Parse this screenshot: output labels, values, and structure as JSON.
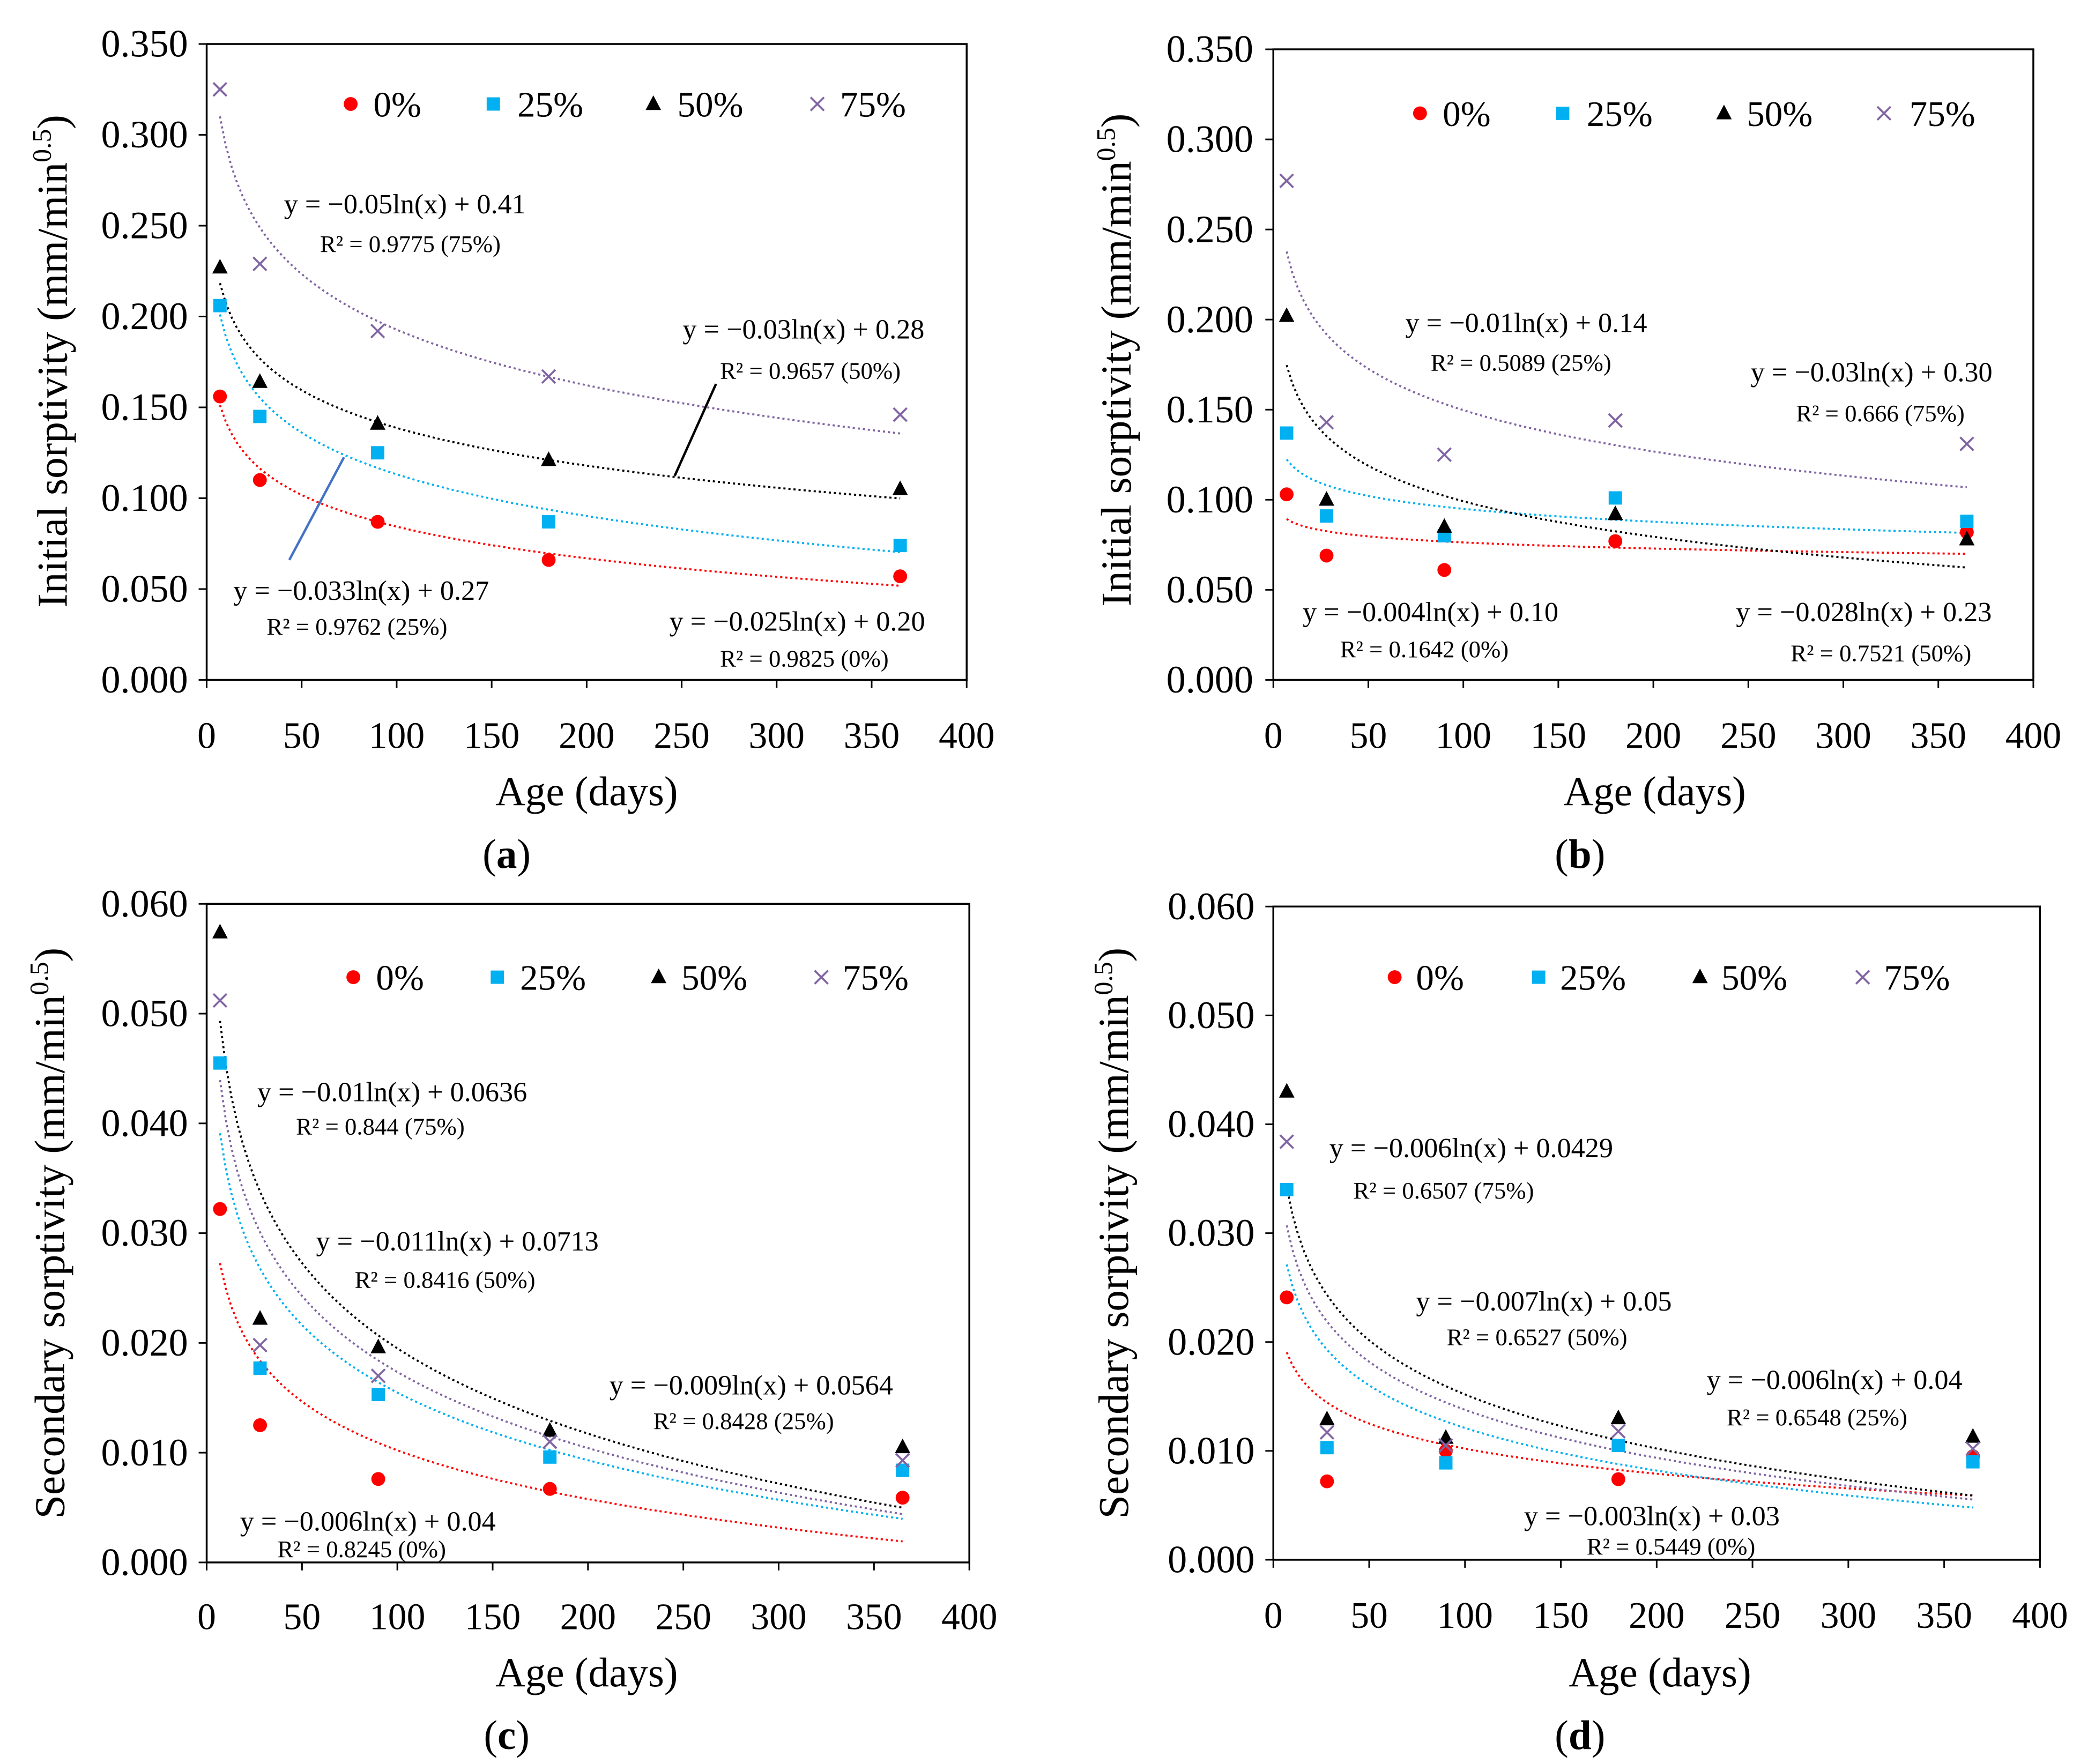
{
  "chart_data": [
    {
      "type": "scatter",
      "panel": {
        "open": "(",
        "letter": "a",
        "close": ")"
      },
      "xlabel": "Age (days)",
      "ylabel": {
        "text": "Initial sorptivity (mm/min",
        "sup": "0.5",
        "close": ")"
      },
      "xlim": [
        0,
        400
      ],
      "ylim": [
        0,
        0.35
      ],
      "xticks": [
        0,
        50,
        100,
        150,
        200,
        250,
        300,
        350,
        400
      ],
      "xtick_labels": [
        "0",
        "50",
        "100",
        "150",
        "200",
        "250",
        "300",
        "350",
        "400"
      ],
      "yticks": [
        0,
        0.05,
        0.1,
        0.15,
        0.2,
        0.25,
        0.3,
        0.35
      ],
      "ytick_labels": [
        "0.000",
        "0.050",
        "0.100",
        "0.150",
        "0.200",
        "0.250",
        "0.300",
        "0.350"
      ],
      "legend": "top",
      "series": [
        {
          "name": "0%",
          "color": "#ff0000",
          "marker": "circle",
          "x": [
            7,
            28,
            90,
            180,
            365
          ],
          "y": [
            0.156,
            0.11,
            0.087,
            0.066,
            0.057
          ]
        },
        {
          "name": "25%",
          "color": "#00b0f0",
          "marker": "square",
          "x": [
            7,
            28,
            90,
            180,
            365
          ],
          "y": [
            0.206,
            0.145,
            0.125,
            0.087,
            0.074
          ]
        },
        {
          "name": "50%",
          "color": "#000000",
          "marker": "triangle",
          "x": [
            7,
            28,
            90,
            180,
            365
          ],
          "y": [
            0.227,
            0.164,
            0.141,
            0.121,
            0.105
          ]
        },
        {
          "name": "75%",
          "color": "#8064a2",
          "marker": "x",
          "x": [
            7,
            28,
            90,
            180,
            365
          ],
          "y": [
            0.325,
            0.229,
            0.192,
            0.167,
            0.146
          ]
        }
      ],
      "annotations": [
        {
          "equation": "y = −0.05ln(x) + 0.41",
          "r2": "R² = 0.9775 (75%)"
        },
        {
          "equation": "y = −0.03ln(x) + 0.28",
          "r2": "R² = 0.9657 (50%)"
        },
        {
          "equation": "y = −0.033ln(x) + 0.27",
          "r2": "R² = 0.9762 (25%)"
        },
        {
          "equation": "y = −0.025ln(x) + 0.20",
          "r2": "R² = 0.9825 (0%)"
        }
      ]
    },
    {
      "type": "scatter",
      "panel": {
        "open": "(",
        "letter": "b",
        "close": ")"
      },
      "xlabel": "Age (days)",
      "ylabel": {
        "text": "Initial sorptivity (mm/min",
        "sup": "0.5",
        "close": ")"
      },
      "xlim": [
        0,
        400
      ],
      "ylim": [
        0,
        0.35
      ],
      "xticks": [
        0,
        50,
        100,
        150,
        200,
        250,
        300,
        350,
        400
      ],
      "xtick_labels": [
        "0",
        "50",
        "100",
        "150",
        "200",
        "250",
        "300",
        "350",
        "400"
      ],
      "yticks": [
        0,
        0.05,
        0.1,
        0.15,
        0.2,
        0.25,
        0.3,
        0.35
      ],
      "ytick_labels": [
        "0.000",
        "0.050",
        "0.100",
        "0.150",
        "0.200",
        "0.250",
        "0.300",
        "0.350"
      ],
      "legend": "top",
      "series": [
        {
          "name": "0%",
          "color": "#ff0000",
          "marker": "circle",
          "x": [
            7,
            28,
            90,
            180,
            365
          ],
          "y": [
            0.103,
            0.069,
            0.061,
            0.077,
            0.082
          ]
        },
        {
          "name": "25%",
          "color": "#00b0f0",
          "marker": "square",
          "x": [
            7,
            28,
            90,
            180,
            365
          ],
          "y": [
            0.137,
            0.091,
            0.08,
            0.101,
            0.088
          ]
        },
        {
          "name": "50%",
          "color": "#000000",
          "marker": "triangle",
          "x": [
            7,
            28,
            90,
            180,
            365
          ],
          "y": [
            0.202,
            0.1,
            0.085,
            0.092,
            0.078
          ]
        },
        {
          "name": "75%",
          "color": "#8064a2",
          "marker": "x",
          "x": [
            7,
            28,
            90,
            180,
            365
          ],
          "y": [
            0.277,
            0.143,
            0.125,
            0.144,
            0.131
          ]
        }
      ],
      "annotations": [
        {
          "equation": "y = −0.01ln(x) + 0.14",
          "r2": "R² = 0.5089 (25%)"
        },
        {
          "equation": "y = −0.03ln(x) + 0.30",
          "r2": "R² = 0.666 (75%)"
        },
        {
          "equation": "y = −0.004ln(x) + 0.10",
          "r2": "R² = 0.1642 (0%)"
        },
        {
          "equation": "y = −0.028ln(x) + 0.23",
          "r2": "R² = 0.7521 (50%)"
        }
      ]
    },
    {
      "type": "scatter",
      "panel": {
        "open": "(",
        "letter": "c",
        "close": ")"
      },
      "xlabel": "Age (days)",
      "ylabel": {
        "text": "Secondary sorptivity (mm/min",
        "sup": "0.5",
        "close": ")"
      },
      "xlim": [
        0,
        400
      ],
      "ylim": [
        0,
        0.06
      ],
      "xticks": [
        0,
        50,
        100,
        150,
        200,
        250,
        300,
        350,
        400
      ],
      "xtick_labels": [
        "0",
        "50",
        "100",
        "150",
        "200",
        "250",
        "300",
        "350",
        "400"
      ],
      "yticks": [
        0,
        0.01,
        0.02,
        0.03,
        0.04,
        0.05,
        0.06
      ],
      "ytick_labels": [
        "0.000",
        "0.010",
        "0.020",
        "0.030",
        "0.040",
        "0.050",
        "0.060"
      ],
      "legend": "top",
      "series": [
        {
          "name": "0%",
          "color": "#ff0000",
          "marker": "circle",
          "x": [
            7,
            28,
            90,
            180,
            365
          ],
          "y": [
            0.0322,
            0.0125,
            0.0076,
            0.0067,
            0.0059
          ]
        },
        {
          "name": "25%",
          "color": "#00b0f0",
          "marker": "square",
          "x": [
            7,
            28,
            90,
            180,
            365
          ],
          "y": [
            0.0455,
            0.0177,
            0.0153,
            0.0096,
            0.0084
          ]
        },
        {
          "name": "50%",
          "color": "#000000",
          "marker": "triangle",
          "x": [
            7,
            28,
            90,
            180,
            365
          ],
          "y": [
            0.0574,
            0.0222,
            0.0196,
            0.012,
            0.0105
          ]
        },
        {
          "name": "75%",
          "color": "#8064a2",
          "marker": "x",
          "x": [
            7,
            28,
            90,
            180,
            365
          ],
          "y": [
            0.0512,
            0.0198,
            0.017,
            0.011,
            0.0093
          ]
        }
      ],
      "annotations": [
        {
          "equation": "y = −0.01ln(x) + 0.0636",
          "r2": "R² = 0.844 (75%)"
        },
        {
          "equation": "y = −0.011ln(x) + 0.0713",
          "r2": "R² = 0.8416 (50%)"
        },
        {
          "equation": "y = −0.009ln(x) + 0.0564",
          "r2": "R² = 0.8428 (25%)"
        },
        {
          "equation": "y = −0.006ln(x) + 0.04",
          "r2": "R² = 0.8245 (0%)"
        }
      ]
    },
    {
      "type": "scatter",
      "panel": {
        "open": "(",
        "letter": "d",
        "close": ")"
      },
      "xlabel": "Age (days)",
      "ylabel": {
        "text": "Secondary sorptivity (mm/min",
        "sup": "0.5",
        "close": ")"
      },
      "xlim": [
        0,
        400
      ],
      "ylim": [
        0,
        0.06
      ],
      "xticks": [
        0,
        50,
        100,
        150,
        200,
        250,
        300,
        350,
        400
      ],
      "xtick_labels": [
        "0",
        "50",
        "100",
        "150",
        "200",
        "250",
        "300",
        "350",
        "400"
      ],
      "yticks": [
        0,
        0.01,
        0.02,
        0.03,
        0.04,
        0.05,
        0.06
      ],
      "ytick_labels": [
        "0.000",
        "0.010",
        "0.020",
        "0.030",
        "0.040",
        "0.050",
        "0.060"
      ],
      "legend": "top",
      "series": [
        {
          "name": "0%",
          "color": "#ff0000",
          "marker": "circle",
          "x": [
            7,
            28,
            90,
            180,
            365
          ],
          "y": [
            0.0241,
            0.0072,
            0.01,
            0.0074,
            0.0095
          ]
        },
        {
          "name": "25%",
          "color": "#00b0f0",
          "marker": "square",
          "x": [
            7,
            28,
            90,
            180,
            365
          ],
          "y": [
            0.034,
            0.0103,
            0.0089,
            0.0105,
            0.009
          ]
        },
        {
          "name": "50%",
          "color": "#000000",
          "marker": "triangle",
          "x": [
            7,
            28,
            90,
            180,
            365
          ],
          "y": [
            0.043,
            0.0129,
            0.0112,
            0.013,
            0.0113
          ]
        },
        {
          "name": "75%",
          "color": "#8064a2",
          "marker": "x",
          "x": [
            7,
            28,
            90,
            180,
            365
          ],
          "y": [
            0.0384,
            0.0117,
            0.0105,
            0.0118,
            0.0102
          ]
        }
      ],
      "annotations": [
        {
          "equation": "y = −0.006ln(x) + 0.0429",
          "r2": "R² = 0.6507 (75%)"
        },
        {
          "equation": "y = −0.007ln(x) + 0.05",
          "r2": "R² = 0.6527 (50%)"
        },
        {
          "equation": "y = −0.006ln(x) + 0.04",
          "r2": "R² = 0.6548 (25%)"
        },
        {
          "equation": "y = −0.003ln(x) + 0.03",
          "r2": "R² = 0.5449 (0%)"
        }
      ]
    }
  ]
}
